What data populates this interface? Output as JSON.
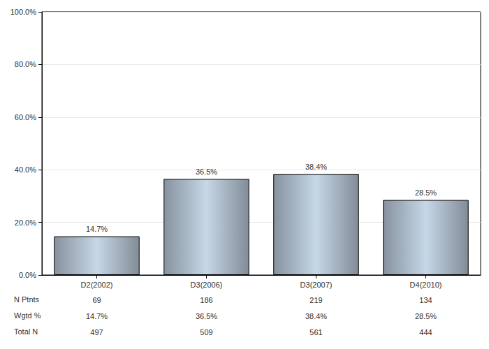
{
  "chart_data": {
    "type": "bar",
    "categories": [
      "D2(2002)",
      "D3(2006)",
      "D3(2007)",
      "D4(2010)"
    ],
    "values": [
      14.7,
      36.5,
      38.4,
      28.5
    ],
    "value_labels": [
      "14.7%",
      "36.5%",
      "38.4%",
      "28.5%"
    ],
    "data_labels": true,
    "color": "#b4c3d2",
    "ylim": [
      0,
      100
    ],
    "yticks": [
      {
        "value": 0,
        "label": "0.0%"
      },
      {
        "value": 20,
        "label": "20.0%"
      },
      {
        "value": 40,
        "label": "40.0%"
      },
      {
        "value": 60,
        "label": "60.0%"
      },
      {
        "value": 80,
        "label": "80.0%"
      },
      {
        "value": 100,
        "label": "100.0%"
      }
    ],
    "grid": true,
    "table": {
      "rows": [
        {
          "label": "N Ptnts",
          "values": [
            69,
            186,
            219,
            134
          ]
        },
        {
          "label": "Wgtd %",
          "values": [
            14.7,
            36.5,
            38.4,
            28.5
          ],
          "value_labels": [
            "14.7%",
            "36.5%",
            "38.4%",
            "28.5%"
          ]
        },
        {
          "label": "Total N",
          "values": [
            497,
            509,
            561,
            444
          ]
        }
      ]
    }
  }
}
